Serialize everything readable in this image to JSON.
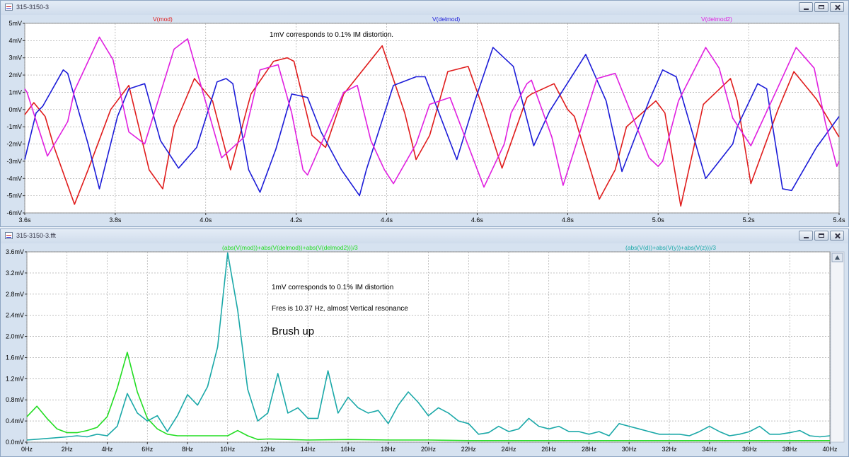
{
  "windows": [
    {
      "title": "315-3150-3"
    },
    {
      "title": "315-3150-3.fft"
    }
  ],
  "chart_data": [
    {
      "type": "line",
      "x_unit": "s",
      "xlim": [
        3.6,
        5.4
      ],
      "ylim": [
        -6,
        5
      ],
      "x_ticks": [
        3.6,
        3.8,
        4.0,
        4.2,
        4.4,
        4.6,
        4.8,
        5.0,
        5.2,
        5.4
      ],
      "x_tick_labels": [
        "3.6s",
        "3.8s",
        "4.0s",
        "4.2s",
        "4.4s",
        "4.6s",
        "4.8s",
        "5.0s",
        "5.2s",
        "5.4s"
      ],
      "y_ticks": [
        -6,
        -5,
        -4,
        -3,
        -2,
        -1,
        0,
        1,
        2,
        3,
        4,
        5
      ],
      "y_tick_labels": [
        "-6mV",
        "-5mV",
        "-4mV",
        "-3mV",
        "-2mV",
        "-1mV",
        "0mV",
        "1mV",
        "2mV",
        "3mV",
        "4mV",
        "5mV"
      ],
      "grid": true,
      "annotations": [
        "1mV corresponds to 0.1% IM distortion."
      ],
      "series": [
        {
          "name": "V(mod)",
          "color": "#e01c1c",
          "x": [
            3.6,
            3.62,
            3.645,
            3.665,
            3.71,
            3.74,
            3.79,
            3.83,
            3.875,
            3.905,
            3.93,
            3.975,
            4.015,
            4.055,
            4.1,
            4.1,
            4.15,
            4.18,
            4.195,
            4.235,
            4.265,
            4.305,
            4.39,
            4.44,
            4.465,
            4.495,
            4.535,
            4.58,
            4.61,
            4.655,
            4.71,
            4.72,
            4.77,
            4.8,
            4.815,
            4.87,
            4.905,
            4.93,
            4.995,
            5.015,
            5.05,
            5.1,
            5.16,
            5.175,
            5.205,
            5.265,
            5.3,
            5.35,
            5.4
          ],
          "y": [
            -0.3,
            0.4,
            -0.4,
            -2.2,
            -5.5,
            -3.5,
            0.0,
            1.4,
            -3.5,
            -4.6,
            -1.0,
            1.8,
            0.5,
            -3.5,
            0.9,
            0.9,
            2.8,
            3.0,
            2.8,
            -1.5,
            -2.2,
            0.9,
            3.7,
            -0.2,
            -2.9,
            -1.5,
            2.2,
            2.5,
            0.3,
            -3.4,
            0.7,
            0.9,
            1.5,
            0.0,
            -0.4,
            -5.2,
            -3.5,
            -1.0,
            0.5,
            -0.2,
            -5.6,
            0.3,
            1.8,
            0.5,
            -4.3,
            0.0,
            2.2,
            0.6,
            -1.6
          ]
        },
        {
          "name": "V(delmod)",
          "color": "#1c1cd8",
          "x": [
            3.6,
            3.625,
            3.64,
            3.685,
            3.695,
            3.74,
            3.765,
            3.805,
            3.83,
            3.865,
            3.9,
            3.94,
            3.98,
            4.025,
            4.045,
            4.06,
            4.095,
            4.12,
            4.155,
            4.19,
            4.225,
            4.255,
            4.3,
            4.34,
            4.355,
            4.41,
            4.415,
            4.465,
            4.485,
            4.52,
            4.555,
            4.595,
            4.635,
            4.68,
            4.725,
            4.76,
            4.84,
            4.885,
            4.92,
            4.98,
            5.01,
            5.04,
            5.105,
            5.165,
            5.175,
            5.22,
            5.24,
            5.275,
            5.295,
            5.35,
            5.4
          ],
          "y": [
            -2.9,
            -0.2,
            0.2,
            2.3,
            2.1,
            -2.0,
            -4.6,
            -0.4,
            1.2,
            1.5,
            -1.8,
            -3.4,
            -2.2,
            1.6,
            1.8,
            1.5,
            -3.5,
            -4.8,
            -2.3,
            0.9,
            0.7,
            -1.3,
            -3.5,
            -5.0,
            -3.5,
            1.0,
            1.4,
            1.9,
            1.9,
            -0.5,
            -2.9,
            0.5,
            3.6,
            2.5,
            -2.1,
            -0.1,
            3.2,
            0.5,
            -3.6,
            0.5,
            2.3,
            1.9,
            -4.0,
            -2.0,
            -1.0,
            1.5,
            1.2,
            -4.6,
            -4.7,
            -2.2,
            -0.4
          ]
        },
        {
          "name": "V(delmod2)",
          "color": "#e020e0",
          "x": [
            3.6,
            3.605,
            3.65,
            3.695,
            3.71,
            3.765,
            3.795,
            3.83,
            3.865,
            3.93,
            3.96,
            4.035,
            4.085,
            4.12,
            4.16,
            4.19,
            4.215,
            4.225,
            4.305,
            4.335,
            4.365,
            4.395,
            4.415,
            4.465,
            4.495,
            4.54,
            4.615,
            4.66,
            4.675,
            4.71,
            4.72,
            4.765,
            4.79,
            4.825,
            4.865,
            4.905,
            4.98,
            5.0,
            5.01,
            5.045,
            5.105,
            5.135,
            5.165,
            5.205,
            5.265,
            5.305,
            5.345,
            5.37,
            5.395,
            5.4
          ],
          "y": [
            1.2,
            1.0,
            -2.7,
            -0.7,
            1.1,
            4.2,
            2.9,
            -1.3,
            -2.0,
            3.5,
            4.1,
            -2.8,
            -1.6,
            2.3,
            2.6,
            -0.2,
            -3.5,
            -3.8,
            1.0,
            1.4,
            -1.8,
            -3.5,
            -4.3,
            -2.0,
            0.3,
            0.7,
            -4.5,
            -2.0,
            -0.2,
            1.5,
            1.7,
            -1.6,
            -4.4,
            -1.5,
            1.8,
            2.1,
            -2.8,
            -3.3,
            -3.0,
            0.5,
            3.6,
            2.4,
            -0.5,
            -2.1,
            1.3,
            3.6,
            2.4,
            -0.8,
            -3.3,
            -3.0
          ]
        }
      ]
    },
    {
      "type": "line",
      "x_unit": "Hz",
      "xlim": [
        0,
        40
      ],
      "ylim": [
        0,
        3.6
      ],
      "x_ticks": [
        0,
        2,
        4,
        6,
        8,
        10,
        12,
        14,
        16,
        18,
        20,
        22,
        24,
        26,
        28,
        30,
        32,
        34,
        36,
        38,
        40
      ],
      "x_tick_labels": [
        "0Hz",
        "2Hz",
        "4Hz",
        "6Hz",
        "8Hz",
        "10Hz",
        "12Hz",
        "14Hz",
        "16Hz",
        "18Hz",
        "20Hz",
        "22Hz",
        "24Hz",
        "26Hz",
        "28Hz",
        "30Hz",
        "32Hz",
        "34Hz",
        "36Hz",
        "38Hz",
        "40Hz"
      ],
      "y_ticks": [
        0,
        0.4,
        0.8,
        1.2,
        1.6,
        2.0,
        2.4,
        2.8,
        3.2,
        3.6
      ],
      "y_tick_labels": [
        "0.0mV",
        "0.4mV",
        "0.8mV",
        "1.2mV",
        "1.6mV",
        "2.0mV",
        "2.4mV",
        "2.8mV",
        "3.2mV",
        "3.6mV"
      ],
      "grid": true,
      "annotations": [
        "1mV corresponds to 0.1% IM distortion",
        "Fres is 10.37 Hz, almost Vertical resonance",
        "Brush up"
      ],
      "series": [
        {
          "name": "(abs(V(mod))+abs(V(delmod))+abs(V(delmod2)))/3",
          "color": "#22dd22",
          "x": [
            0,
            0.5,
            1,
            1.5,
            2,
            2.5,
            3,
            3.5,
            4,
            4.5,
            5,
            5.5,
            6,
            6.5,
            7,
            7.5,
            8,
            9,
            10,
            10.5,
            11,
            11.5,
            12,
            14,
            16,
            18,
            20,
            22,
            24,
            26,
            28,
            30,
            32,
            34,
            36,
            38,
            40
          ],
          "y": [
            0.48,
            0.68,
            0.45,
            0.25,
            0.18,
            0.18,
            0.22,
            0.28,
            0.48,
            1.02,
            1.7,
            0.95,
            0.45,
            0.25,
            0.15,
            0.12,
            0.12,
            0.12,
            0.12,
            0.22,
            0.12,
            0.05,
            0.06,
            0.04,
            0.05,
            0.04,
            0.04,
            0.03,
            0.03,
            0.03,
            0.03,
            0.03,
            0.03,
            0.03,
            0.03,
            0.03,
            0.03
          ]
        },
        {
          "name": "(abs(V(d))+abs(V(y))+abs(V(z)))/3",
          "color": "#1aa8a8",
          "x": [
            0,
            1,
            2,
            2.5,
            3,
            3.5,
            4,
            4.5,
            5,
            5.5,
            6,
            6.5,
            7,
            7.5,
            8,
            8.5,
            9,
            9.5,
            10,
            10.5,
            11,
            11.5,
            12,
            12.5,
            13,
            13.5,
            14,
            14.5,
            15,
            15.5,
            16,
            16.5,
            17,
            17.5,
            18,
            18.5,
            19,
            19.5,
            20,
            20.5,
            21,
            21.5,
            22,
            22.5,
            23,
            23.5,
            24,
            24.5,
            25,
            25.5,
            26,
            26.5,
            27,
            27.5,
            28,
            28.5,
            29,
            29.5,
            30,
            30.5,
            31,
            31.5,
            32,
            32.5,
            33,
            33.5,
            34,
            34.5,
            35,
            35.5,
            36,
            36.5,
            37,
            37.5,
            38,
            38.5,
            39,
            39.5,
            40
          ],
          "y": [
            0.04,
            0.07,
            0.1,
            0.12,
            0.1,
            0.15,
            0.12,
            0.3,
            0.92,
            0.55,
            0.4,
            0.5,
            0.2,
            0.5,
            0.9,
            0.7,
            1.05,
            1.8,
            3.58,
            2.5,
            1.0,
            0.4,
            0.55,
            1.3,
            0.55,
            0.65,
            0.45,
            0.45,
            1.35,
            0.55,
            0.85,
            0.65,
            0.55,
            0.6,
            0.35,
            0.7,
            0.95,
            0.75,
            0.5,
            0.65,
            0.55,
            0.4,
            0.35,
            0.15,
            0.18,
            0.3,
            0.2,
            0.25,
            0.45,
            0.3,
            0.25,
            0.3,
            0.2,
            0.2,
            0.15,
            0.2,
            0.12,
            0.35,
            0.3,
            0.25,
            0.2,
            0.15,
            0.15,
            0.15,
            0.12,
            0.2,
            0.3,
            0.2,
            0.12,
            0.15,
            0.2,
            0.3,
            0.15,
            0.15,
            0.18,
            0.22,
            0.12,
            0.1,
            0.12
          ]
        }
      ]
    }
  ]
}
